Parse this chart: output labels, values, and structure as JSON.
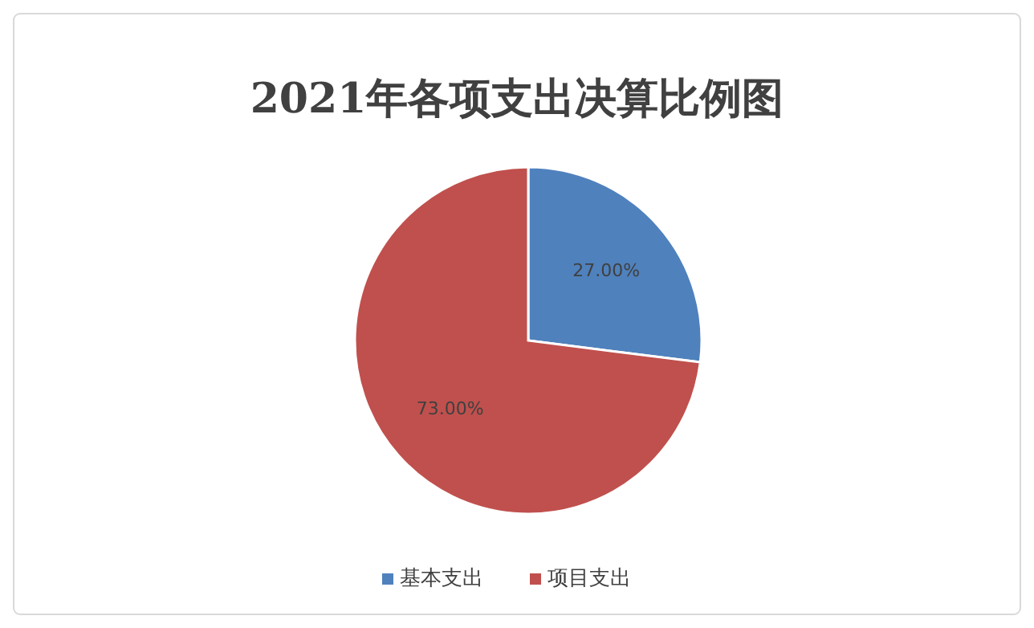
{
  "chart_data": {
    "type": "pie",
    "title": "2021年各项支出决算比例图",
    "categories": [
      "基本支出",
      "项目支出"
    ],
    "values": [
      27,
      73
    ],
    "value_labels": [
      "27.00%",
      "73.00%"
    ],
    "colors": [
      "#4f81bd",
      "#c0504d"
    ],
    "legend": "bottom"
  }
}
